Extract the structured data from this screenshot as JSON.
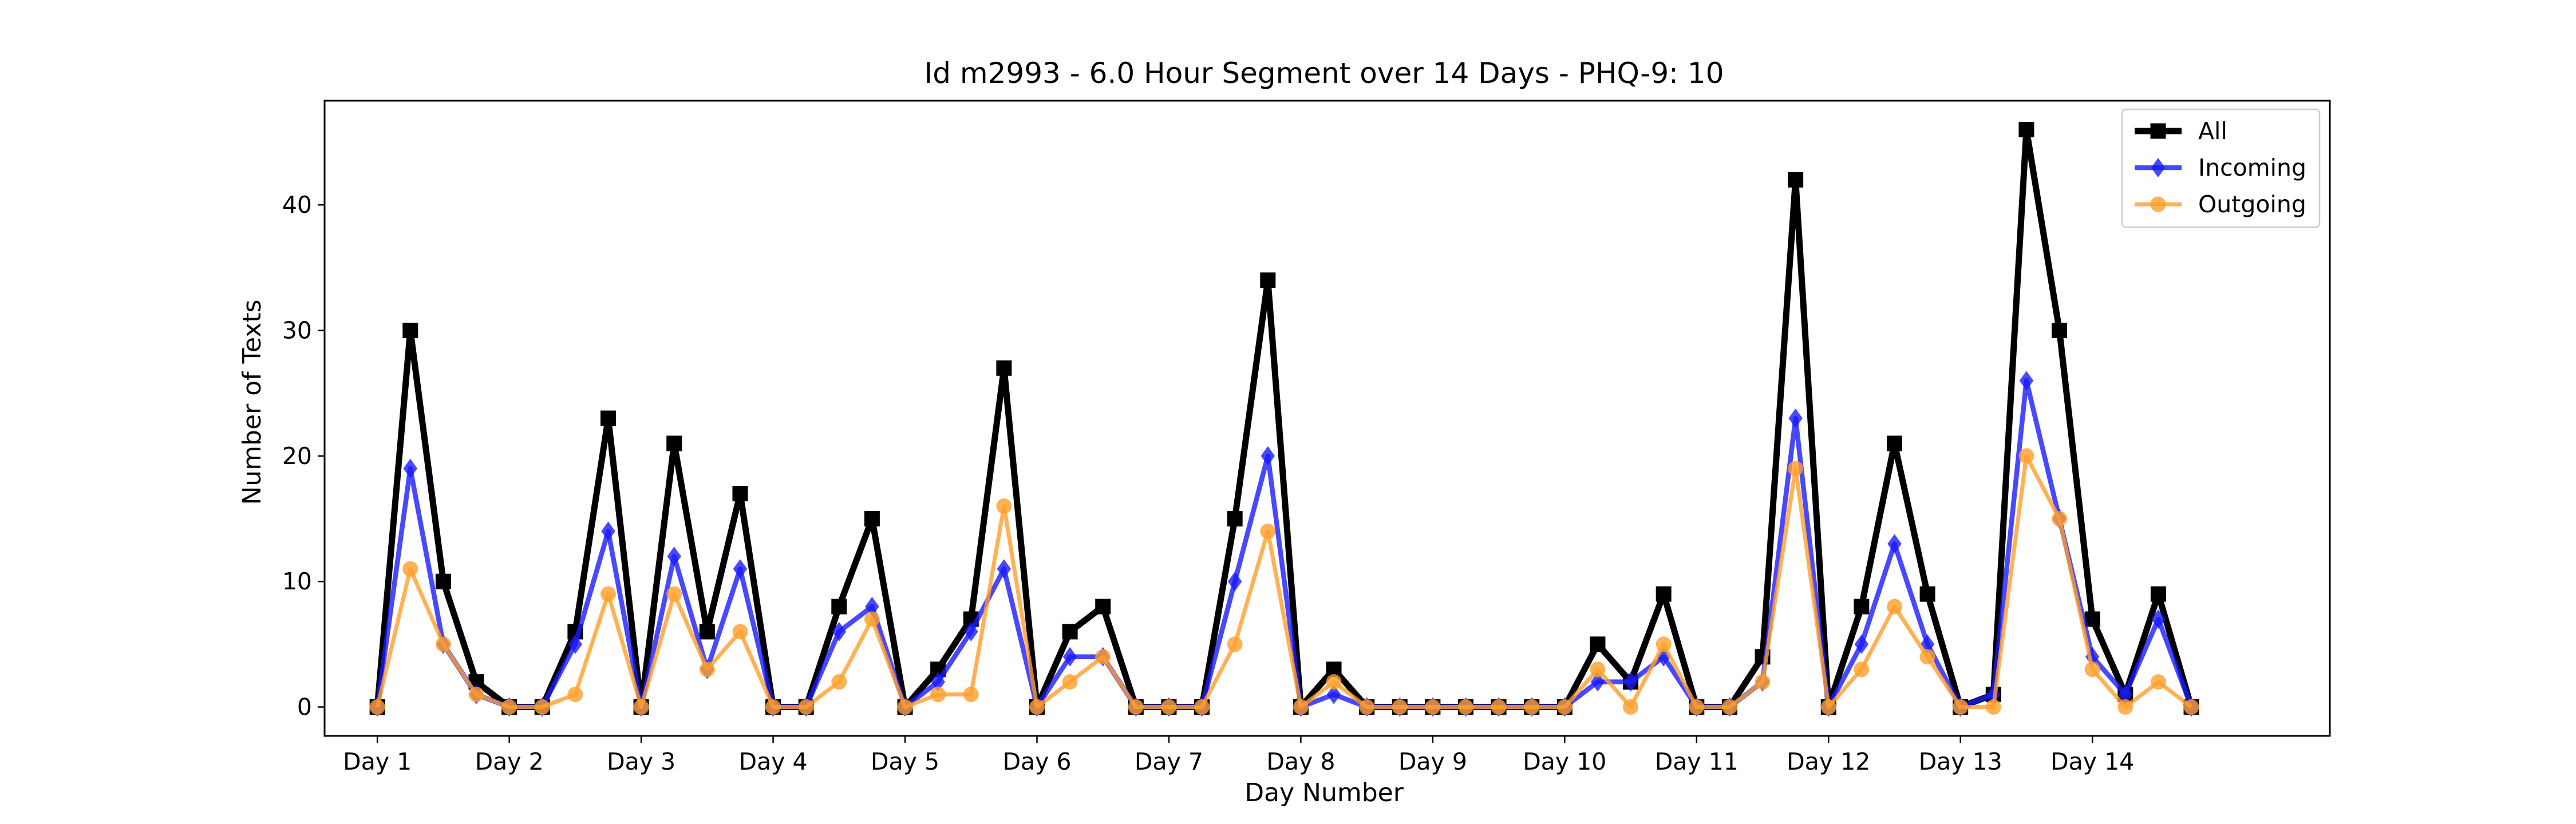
{
  "chart_data": {
    "type": "line",
    "title": "Id m2993 - 6.0 Hour Segment over 14 Days - PHQ-9: 10",
    "xlabel": "Day Number",
    "ylabel": "Number of Texts",
    "xlim": [
      -0.4,
      14.8
    ],
    "ylim": [
      -2.3,
      48.3
    ],
    "y_ticks": [
      0,
      10,
      20,
      30,
      40
    ],
    "x_ticks": [
      {
        "pos": 0,
        "label": "Day 1"
      },
      {
        "pos": 1,
        "label": "Day 2"
      },
      {
        "pos": 2,
        "label": "Day 3"
      },
      {
        "pos": 3,
        "label": "Day 4"
      },
      {
        "pos": 4,
        "label": "Day 5"
      },
      {
        "pos": 5,
        "label": "Day 6"
      },
      {
        "pos": 6,
        "label": "Day 7"
      },
      {
        "pos": 7,
        "label": "Day 8"
      },
      {
        "pos": 8,
        "label": "Day 9"
      },
      {
        "pos": 9,
        "label": "Day 10"
      },
      {
        "pos": 10,
        "label": "Day 11"
      },
      {
        "pos": 11,
        "label": "Day 12"
      },
      {
        "pos": 12,
        "label": "Day 13"
      },
      {
        "pos": 13,
        "label": "Day 14"
      }
    ],
    "x": [
      0,
      0.25,
      0.5,
      0.75,
      1,
      1.25,
      1.5,
      1.75,
      2,
      2.25,
      2.5,
      2.75,
      3,
      3.25,
      3.5,
      3.75,
      4,
      4.25,
      4.5,
      4.75,
      5,
      5.25,
      5.5,
      5.75,
      6,
      6.25,
      6.5,
      6.75,
      7,
      7.25,
      7.5,
      7.75,
      8,
      8.25,
      8.5,
      8.75,
      9,
      9.25,
      9.5,
      9.75,
      10,
      10.25,
      10.5,
      10.75,
      11,
      11.25,
      11.5,
      11.75,
      12,
      12.25,
      12.5,
      12.75,
      13,
      13.25,
      13.5,
      13.75
    ],
    "grid": false,
    "legend_position": "top-right",
    "series": [
      {
        "name": "All",
        "color": "#000000",
        "marker": "square",
        "values": [
          0,
          30,
          10,
          2,
          0,
          0,
          6,
          23,
          0,
          21,
          6,
          17,
          0,
          0,
          8,
          15,
          0,
          3,
          7,
          27,
          0,
          6,
          8,
          0,
          0,
          0,
          15,
          34,
          0,
          3,
          0,
          0,
          0,
          0,
          0,
          0,
          0,
          5,
          2,
          9,
          0,
          0,
          4,
          42,
          0,
          8,
          21,
          9,
          0,
          1,
          46,
          30,
          7,
          1,
          9,
          0
        ]
      },
      {
        "name": "Incoming",
        "color": "#1a1aff",
        "marker": "diamond",
        "values": [
          0,
          19,
          5,
          1,
          0,
          0,
          5,
          14,
          0,
          12,
          3,
          11,
          0,
          0,
          6,
          8,
          0,
          2,
          6,
          11,
          0,
          4,
          4,
          0,
          0,
          0,
          10,
          20,
          0,
          1,
          0,
          0,
          0,
          0,
          0,
          0,
          0,
          2,
          2,
          4,
          0,
          0,
          2,
          23,
          0,
          5,
          13,
          5,
          0,
          1,
          26,
          15,
          4,
          1,
          7,
          0
        ]
      },
      {
        "name": "Outgoing",
        "color": "#ff9f2b",
        "marker": "circle",
        "values": [
          0,
          11,
          5,
          1,
          0,
          0,
          1,
          9,
          0,
          9,
          3,
          6,
          0,
          0,
          2,
          7,
          0,
          1,
          1,
          16,
          0,
          2,
          4,
          0,
          0,
          0,
          5,
          14,
          0,
          2,
          0,
          0,
          0,
          0,
          0,
          0,
          0,
          3,
          0,
          5,
          0,
          0,
          2,
          19,
          0,
          3,
          8,
          4,
          0,
          0,
          20,
          15,
          3,
          0,
          2,
          0
        ]
      }
    ]
  }
}
